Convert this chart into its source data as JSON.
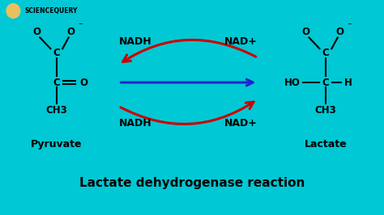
{
  "bg_color": "#00C8D4",
  "text_color": "#000000",
  "title_text": "Lactate dehydrogenase reaction",
  "title_fontsize": 11,
  "logo_text": "SCIENCEQUERY",
  "pyruvate_label": "Pyruvate",
  "lactate_label": "Lactate",
  "nadh_top_left": "NADH",
  "nad_top_right": "NAD+",
  "nadh_bot_left": "NADH",
  "nad_bot_right": "NAD+",
  "arrow_color_blue": "#2222cc",
  "arrow_color_red": "#cc0000",
  "line_color": "#000000",
  "figsize": [
    4.74,
    2.66
  ],
  "dpi": 100
}
